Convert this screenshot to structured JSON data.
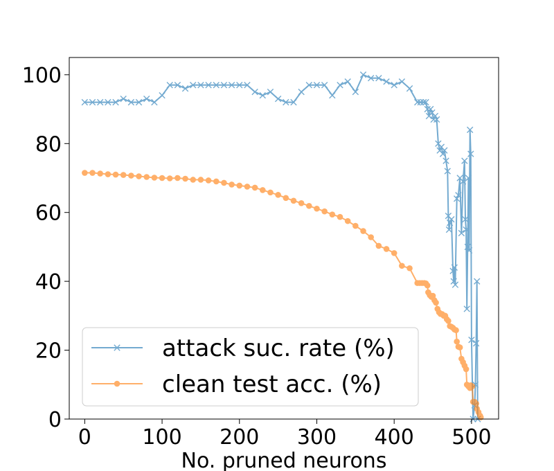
{
  "chart_data": {
    "type": "line",
    "title": "",
    "xlabel": "No. pruned neurons",
    "ylabel": "",
    "xlim": [
      -20,
      535
    ],
    "ylim": [
      0,
      105
    ],
    "xticks": [
      0,
      100,
      200,
      300,
      400,
      500
    ],
    "yticks": [
      0,
      20,
      40,
      60,
      80,
      100
    ],
    "grid": false,
    "legend_placement": "lower-left",
    "series": [
      {
        "name": "attack suc. rate (%)",
        "color": "#1f77b4",
        "marker": "x",
        "points": [
          [
            0,
            92
          ],
          [
            10,
            92
          ],
          [
            20,
            92
          ],
          [
            30,
            92
          ],
          [
            40,
            92
          ],
          [
            50,
            93
          ],
          [
            60,
            92
          ],
          [
            70,
            92
          ],
          [
            80,
            93
          ],
          [
            90,
            92
          ],
          [
            100,
            94
          ],
          [
            110,
            97
          ],
          [
            120,
            97
          ],
          [
            130,
            96
          ],
          [
            140,
            97
          ],
          [
            150,
            97
          ],
          [
            160,
            97
          ],
          [
            170,
            97
          ],
          [
            180,
            97
          ],
          [
            190,
            97
          ],
          [
            200,
            97
          ],
          [
            210,
            97
          ],
          [
            220,
            95
          ],
          [
            230,
            94
          ],
          [
            240,
            95
          ],
          [
            250,
            93
          ],
          [
            260,
            92
          ],
          [
            270,
            92
          ],
          [
            280,
            95
          ],
          [
            290,
            97
          ],
          [
            300,
            97
          ],
          [
            310,
            97
          ],
          [
            320,
            94
          ],
          [
            330,
            97
          ],
          [
            340,
            98
          ],
          [
            350,
            95
          ],
          [
            360,
            100
          ],
          [
            370,
            99
          ],
          [
            380,
            99
          ],
          [
            390,
            98
          ],
          [
            400,
            97
          ],
          [
            410,
            98
          ],
          [
            420,
            96
          ],
          [
            430,
            92
          ],
          [
            434,
            92
          ],
          [
            438,
            92
          ],
          [
            441,
            92
          ],
          [
            443,
            90
          ],
          [
            445,
            88
          ],
          [
            447,
            90
          ],
          [
            449,
            89
          ],
          [
            451,
            87
          ],
          [
            453,
            88
          ],
          [
            455,
            87
          ],
          [
            457,
            80
          ],
          [
            459,
            78
          ],
          [
            461,
            79
          ],
          [
            463,
            77
          ],
          [
            465,
            78
          ],
          [
            467,
            75
          ],
          [
            469,
            72
          ],
          [
            470,
            59
          ],
          [
            471,
            55
          ],
          [
            472,
            57
          ],
          [
            474,
            58
          ],
          [
            476,
            43
          ],
          [
            477,
            40
          ],
          [
            478,
            44
          ],
          [
            479,
            39
          ],
          [
            481,
            64
          ],
          [
            483,
            65
          ],
          [
            485,
            70
          ],
          [
            487,
            54
          ],
          [
            489,
            69
          ],
          [
            491,
            75
          ],
          [
            492,
            58
          ],
          [
            493,
            55
          ],
          [
            494,
            32
          ],
          [
            495,
            50
          ],
          [
            496,
            70
          ],
          [
            497,
            49
          ],
          [
            498,
            84
          ],
          [
            499,
            77
          ],
          [
            500,
            23
          ],
          [
            502,
            0
          ],
          [
            504,
            4
          ],
          [
            505,
            10
          ],
          [
            506,
            22
          ],
          [
            507,
            40
          ],
          [
            508,
            0
          ]
        ]
      },
      {
        "name": "clean test acc. (%)",
        "color": "#ff7f0e",
        "marker": "o",
        "points": [
          [
            0,
            71.5
          ],
          [
            10,
            71.5
          ],
          [
            20,
            71.3
          ],
          [
            30,
            71.1
          ],
          [
            40,
            71
          ],
          [
            50,
            70.9
          ],
          [
            60,
            70.7
          ],
          [
            70,
            70.5
          ],
          [
            80,
            70.3
          ],
          [
            90,
            70.1
          ],
          [
            100,
            70
          ],
          [
            110,
            69.9
          ],
          [
            120,
            70
          ],
          [
            130,
            69.8
          ],
          [
            140,
            69.5
          ],
          [
            150,
            69.5
          ],
          [
            160,
            69.3
          ],
          [
            170,
            69
          ],
          [
            180,
            68.6
          ],
          [
            190,
            68.1
          ],
          [
            200,
            67.8
          ],
          [
            210,
            67.5
          ],
          [
            220,
            67.2
          ],
          [
            230,
            66.5
          ],
          [
            240,
            65.8
          ],
          [
            250,
            65.1
          ],
          [
            260,
            64.2
          ],
          [
            270,
            63.4
          ],
          [
            280,
            62.7
          ],
          [
            290,
            61.9
          ],
          [
            300,
            61.1
          ],
          [
            310,
            60.3
          ],
          [
            320,
            59.4
          ],
          [
            330,
            58.7
          ],
          [
            340,
            57.5
          ],
          [
            350,
            56.1
          ],
          [
            360,
            54.6
          ],
          [
            370,
            52.8
          ],
          [
            380,
            50.3
          ],
          [
            390,
            49.4
          ],
          [
            400,
            48.2
          ],
          [
            410,
            44.5
          ],
          [
            420,
            43.8
          ],
          [
            430,
            39.5
          ],
          [
            433,
            39.5
          ],
          [
            436,
            39.5
          ],
          [
            439,
            39.5
          ],
          [
            441,
            39.4
          ],
          [
            443,
            38.8
          ],
          [
            444,
            36.8
          ],
          [
            446,
            36
          ],
          [
            448,
            35.5
          ],
          [
            450,
            35.8
          ],
          [
            452,
            34.5
          ],
          [
            454,
            33.8
          ],
          [
            456,
            32
          ],
          [
            458,
            31
          ],
          [
            460,
            30.5
          ],
          [
            462,
            30.5
          ],
          [
            464,
            30
          ],
          [
            466,
            30
          ],
          [
            468,
            29
          ],
          [
            470,
            28.5
          ],
          [
            472,
            27
          ],
          [
            474,
            26.8
          ],
          [
            476,
            26.5
          ],
          [
            478,
            26
          ],
          [
            480,
            25.8
          ],
          [
            481,
            22.5
          ],
          [
            483,
            21
          ],
          [
            485,
            20.8
          ],
          [
            487,
            17.5
          ],
          [
            489,
            16.5
          ],
          [
            491,
            15.5
          ],
          [
            493,
            14.5
          ],
          [
            494,
            10
          ],
          [
            496,
            9.5
          ],
          [
            498,
            9
          ],
          [
            499,
            9.8
          ],
          [
            501,
            9.5
          ],
          [
            502,
            5
          ],
          [
            504,
            5
          ],
          [
            506,
            4.5
          ],
          [
            507,
            3
          ],
          [
            509,
            2
          ],
          [
            511,
            1
          ],
          [
            512,
            0.5
          ]
        ]
      }
    ]
  }
}
